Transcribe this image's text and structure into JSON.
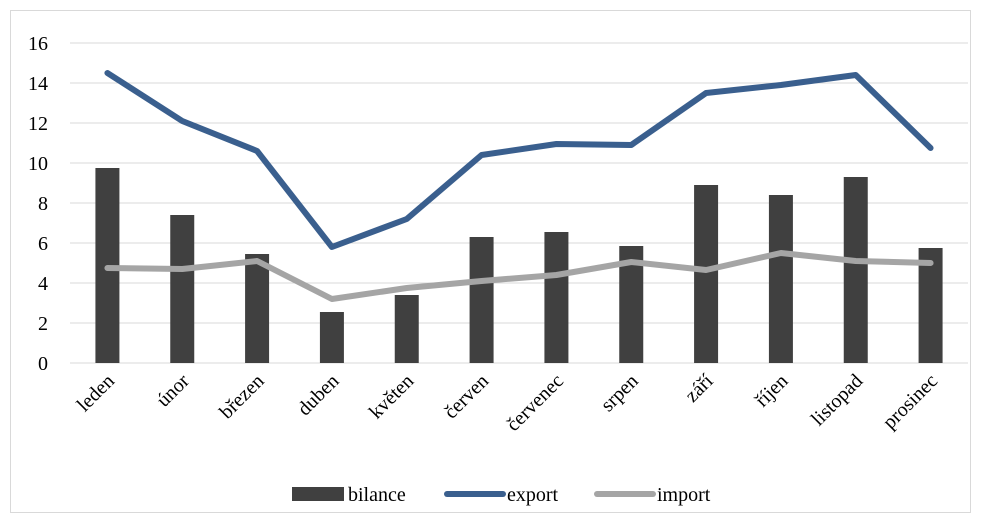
{
  "chart_data": {
    "type": "bar",
    "categories": [
      "leden",
      "únor",
      "březen",
      "duben",
      "květen",
      "červen",
      "červenec",
      "srpen",
      "září",
      "říjen",
      "listopad",
      "prosinec"
    ],
    "series": [
      {
        "name": "bilance",
        "type": "bar",
        "color": "#404040",
        "values": [
          9.75,
          7.4,
          5.45,
          2.55,
          3.4,
          6.3,
          6.55,
          5.85,
          8.9,
          8.4,
          9.3,
          5.75
        ]
      },
      {
        "name": "export",
        "type": "line",
        "color": "#3a5f8e",
        "values": [
          14.5,
          12.1,
          10.6,
          5.8,
          7.2,
          10.4,
          10.95,
          10.9,
          13.5,
          13.9,
          14.4,
          10.75
        ]
      },
      {
        "name": "import",
        "type": "line",
        "color": "#a5a5a5",
        "values": [
          4.75,
          4.7,
          5.1,
          3.2,
          3.75,
          4.1,
          4.4,
          5.05,
          4.65,
          5.5,
          5.1,
          5.0
        ]
      }
    ],
    "yticks": [
      "0",
      "2",
      "4",
      "6",
      "8",
      "10",
      "12",
      "14",
      "16"
    ],
    "ylim": [
      0,
      16
    ],
    "grid": true,
    "legend_position": "bottom",
    "title": "",
    "xlabel": "",
    "ylabel": ""
  }
}
